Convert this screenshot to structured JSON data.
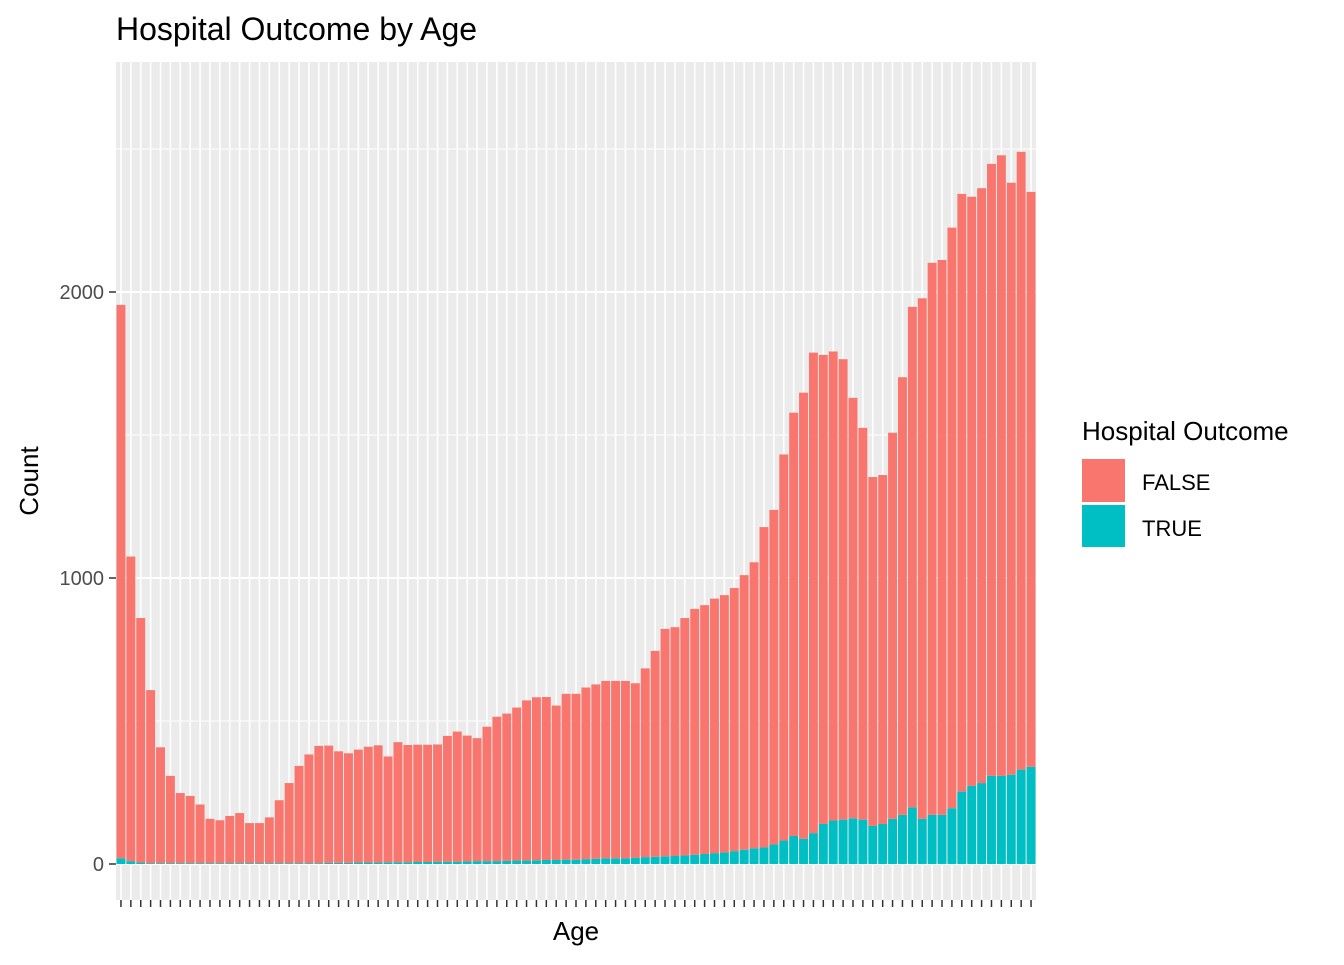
{
  "chart_data": {
    "type": "bar",
    "stacked": true,
    "title": "Hospital Outcome by Age",
    "xlabel": "Age",
    "ylabel": "Count",
    "x_tick_labels_shown": false,
    "ylim": [
      -110,
      2700
    ],
    "y_ticks": [
      0,
      1000,
      2000
    ],
    "grid": true,
    "legend_position": "right",
    "legend_title": "Hospital Outcome",
    "colors": {
      "FALSE": "#F8766D",
      "TRUE": "#00BFC4",
      "panel": "#EBEBEB",
      "grid": "#FFFFFF"
    },
    "categories": [
      0,
      1,
      2,
      3,
      4,
      5,
      6,
      7,
      8,
      9,
      10,
      11,
      12,
      13,
      14,
      15,
      16,
      17,
      18,
      19,
      20,
      21,
      22,
      23,
      24,
      25,
      26,
      27,
      28,
      29,
      30,
      31,
      32,
      33,
      34,
      35,
      36,
      37,
      38,
      39,
      40,
      41,
      42,
      43,
      44,
      45,
      46,
      47,
      48,
      49,
      50,
      51,
      52,
      53,
      54,
      55,
      56,
      57,
      58,
      59,
      60,
      61,
      62,
      63,
      64,
      65,
      66,
      67,
      68,
      69,
      70,
      71,
      72,
      73,
      74,
      75,
      76,
      77,
      78,
      79,
      80,
      81,
      82,
      83,
      84,
      85,
      86,
      87,
      88,
      89,
      90,
      91,
      92
    ],
    "series": [
      {
        "name": "TRUE",
        "values": [
          20,
          10,
          5,
          3,
          3,
          3,
          3,
          3,
          3,
          3,
          3,
          3,
          3,
          3,
          3,
          3,
          3,
          3,
          3,
          3,
          3,
          4,
          4,
          4,
          5,
          5,
          5,
          6,
          6,
          6,
          7,
          7,
          8,
          8,
          8,
          9,
          10,
          10,
          10,
          11,
          12,
          12,
          13,
          14,
          14,
          15,
          15,
          17,
          18,
          20,
          20,
          20,
          22,
          24,
          25,
          27,
          28,
          30,
          32,
          35,
          38,
          40,
          45,
          50,
          55,
          58,
          68,
          82,
          98,
          88,
          108,
          140,
          152,
          155,
          160,
          155,
          133,
          140,
          158,
          172,
          198,
          158,
          172,
          172,
          195,
          253,
          273,
          283,
          308,
          308,
          312,
          330,
          340
        ],
        "values_tail_note": ""
      },
      {
        "name": "FALSE",
        "values": [
          1935,
          1065,
          855,
          605,
          405,
          305,
          245,
          235,
          205,
          155,
          150,
          165,
          175,
          140,
          140,
          160,
          220,
          280,
          340,
          380,
          410,
          410,
          390,
          383,
          395,
          405,
          410,
          370,
          420,
          410,
          410,
          410,
          410,
          440,
          455,
          440,
          430,
          470,
          505,
          515,
          535,
          560,
          570,
          570,
          540,
          580,
          580,
          600,
          610,
          620,
          620,
          620,
          610,
          660,
          720,
          795,
          800,
          830,
          860,
          870,
          890,
          900,
          920,
          960,
          1000,
          1120,
          1170,
          1350,
          1480,
          1560,
          1680,
          1640,
          1640,
          1610,
          1470,
          1370,
          1220,
          1220,
          1350,
          1530,
          1750,
          1820,
          1930,
          1940,
          2030,
          2090,
          2060,
          2080,
          2140,
          2170,
          2070,
          2160,
          2010
        ]
      }
    ]
  }
}
